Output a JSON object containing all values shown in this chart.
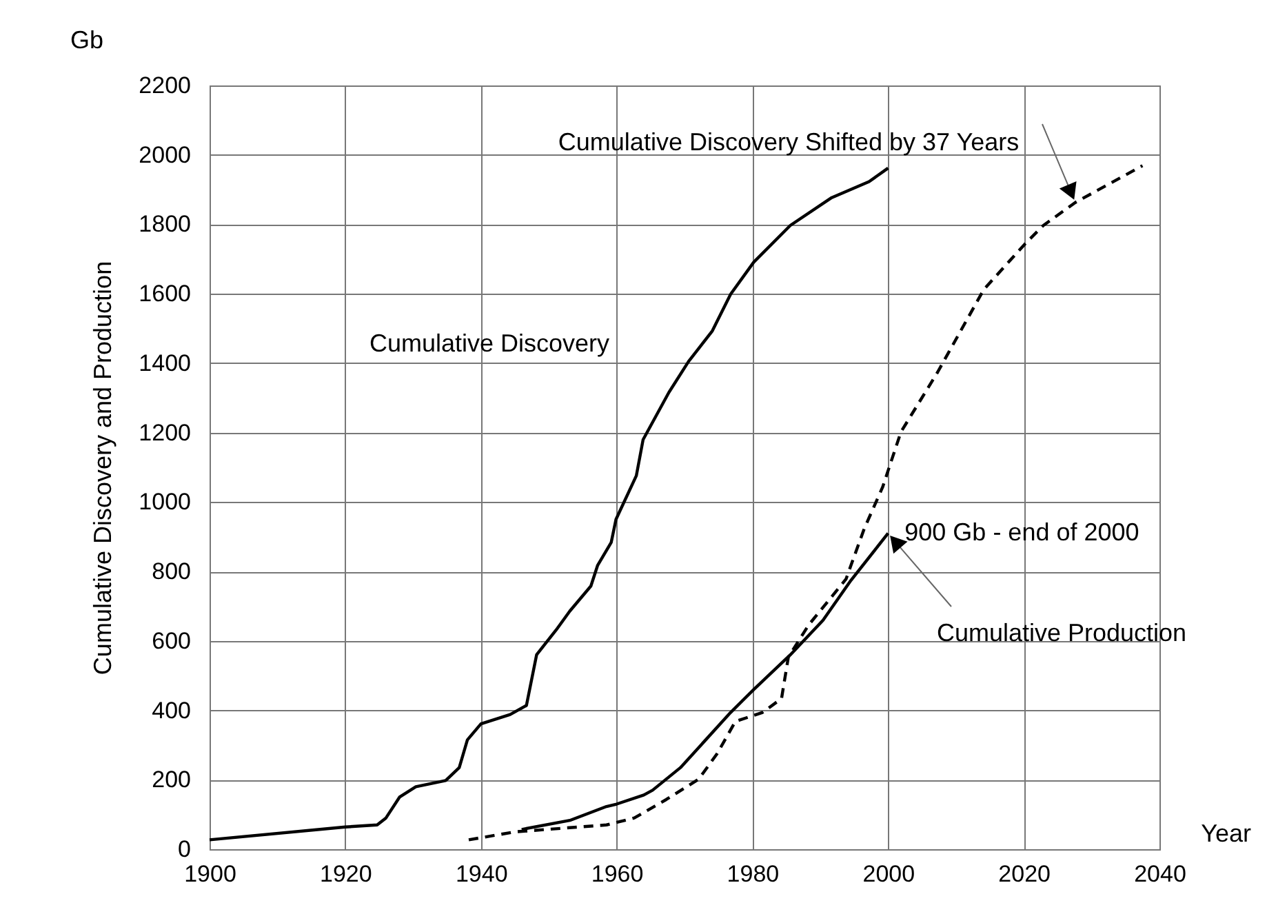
{
  "chart_data": {
    "type": "line",
    "xlabel": "Year",
    "ylabel": "Cumulative Discovery and Production",
    "xlim": [
      1900,
      2040
    ],
    "xticks": [
      1900,
      1920,
      1940,
      1960,
      1980,
      2000,
      2020,
      2040
    ],
    "ylim": [
      0,
      2200
    ],
    "yticks": [
      0,
      200,
      400,
      600,
      800,
      1000,
      1200,
      1400,
      1600,
      1800,
      2000,
      2200
    ],
    "grid": true,
    "annotations": [
      "Gb",
      {
        "text": "900 Gb  - end of 2000",
        "x": 2000,
        "y": 910
      }
    ],
    "series": [
      {
        "name": "Cumulative Discovery",
        "color": "#000000",
        "line_style": "solid",
        "x": [
          1900,
          1920,
          1924.7,
          1926,
          1928,
          1930.4,
          1934.8,
          1936.8,
          1938,
          1940,
          1944.3,
          1946.7,
          1948.2,
          1951.1,
          1953.1,
          1956.2,
          1957.2,
          1959.2,
          1959.9,
          1962.9,
          1963.9,
          1967.7,
          1970.6,
          1974.1,
          1976.8,
          1980.2,
          1985.6,
          1991.7,
          1997.2,
          2000
        ],
        "values": [
          27,
          64,
          70,
          90,
          150,
          180,
          198,
          235,
          315,
          361,
          388,
          414,
          560,
          632,
          686,
          758,
          818,
          884,
          950,
          1076,
          1180,
          1316,
          1405,
          1493,
          1599,
          1691,
          1797,
          1877,
          1923,
          1962
        ]
      },
      {
        "name": "Cumulative Production",
        "color": "#000000",
        "line_style": "solid",
        "x": [
          1946,
          1953.1,
          1958.5,
          1960,
          1964,
          1965.3,
          1969.4,
          1976.8,
          1980.2,
          1985.6,
          1990.4,
          1994.4,
          2000
        ],
        "values": [
          57,
          83,
          123,
          130,
          156,
          170,
          235,
          394,
          460,
          560,
          659,
          771,
          910
        ]
      },
      {
        "name": "Cumulative Discovery Shifted by 37 Years",
        "color": "#000000",
        "line_style": "dashed",
        "x": [
          1938.2,
          1945,
          1958.5,
          1962.6,
          1967.3,
          1972.1,
          1974.8,
          1977.5,
          1981.5,
          1984.3,
          1985.3,
          1988.3,
          1993.8,
          1996.5,
          1999.2,
          2001.9,
          2007.3,
          2014.1,
          2020.2,
          2022.9,
          2027.6,
          2037.5
        ],
        "values": [
          27,
          50,
          70,
          90,
          143,
          202,
          275,
          368,
          394,
          434,
          553,
          646,
          778,
          924,
          1043,
          1202,
          1374,
          1612,
          1744,
          1797,
          1863,
          1969
        ]
      }
    ]
  }
}
